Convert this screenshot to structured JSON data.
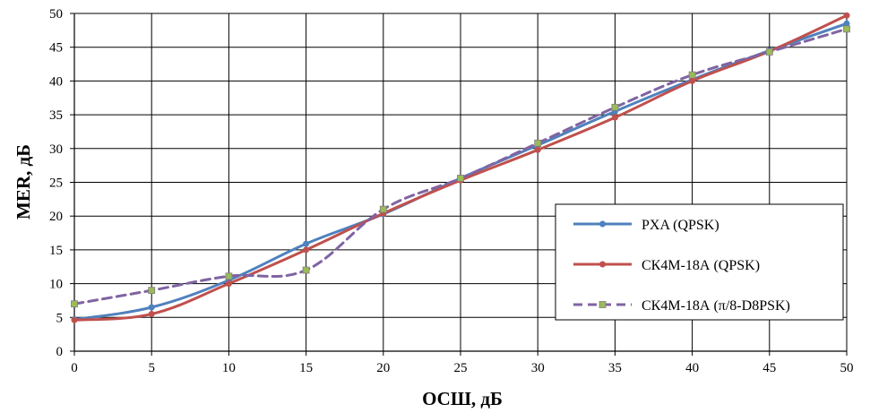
{
  "colors": {
    "series_1": "#4f81bd",
    "series_2": "#c0504d",
    "series_3": "#8064a2",
    "series_3_marker": "#9bbb59",
    "grid": "#000000",
    "axis": "#000000"
  },
  "chart_data": {
    "type": "line",
    "title": "",
    "xlabel": "ОСШ, дБ",
    "ylabel": "MER, дБ",
    "xlim": [
      0,
      50
    ],
    "ylim": [
      0,
      50
    ],
    "xticks": [
      0,
      5,
      10,
      15,
      20,
      25,
      30,
      35,
      40,
      45,
      50
    ],
    "yticks": [
      0,
      5,
      10,
      15,
      20,
      25,
      30,
      35,
      40,
      45,
      50
    ],
    "grid": true,
    "legend_position": "right",
    "x": [
      0,
      5,
      10,
      15,
      20,
      25,
      30,
      35,
      40,
      45,
      50
    ],
    "series": [
      {
        "name": "PXA (QPSK)",
        "values": [
          4.7,
          6.5,
          10.5,
          15.9,
          20.3,
          25.6,
          30.5,
          35.5,
          40.2,
          44.5,
          48.5
        ],
        "line_style": "solid",
        "marker": "circle",
        "color_key": "series_1"
      },
      {
        "name": "СК4М-18А (QPSK)",
        "values": [
          4.6,
          5.5,
          10.0,
          15.0,
          20.4,
          25.3,
          29.8,
          34.6,
          40.0,
          44.4,
          49.7
        ],
        "line_style": "solid",
        "marker": "circle",
        "color_key": "series_2"
      },
      {
        "name": "СК4М-18А (π/8-D8PSK)",
        "values": [
          7.0,
          9.0,
          11.1,
          12.0,
          21.0,
          25.6,
          30.8,
          36.1,
          40.9,
          44.3,
          47.7
        ],
        "line_style": "dashed",
        "marker": "square",
        "color_key": "series_3"
      }
    ]
  }
}
